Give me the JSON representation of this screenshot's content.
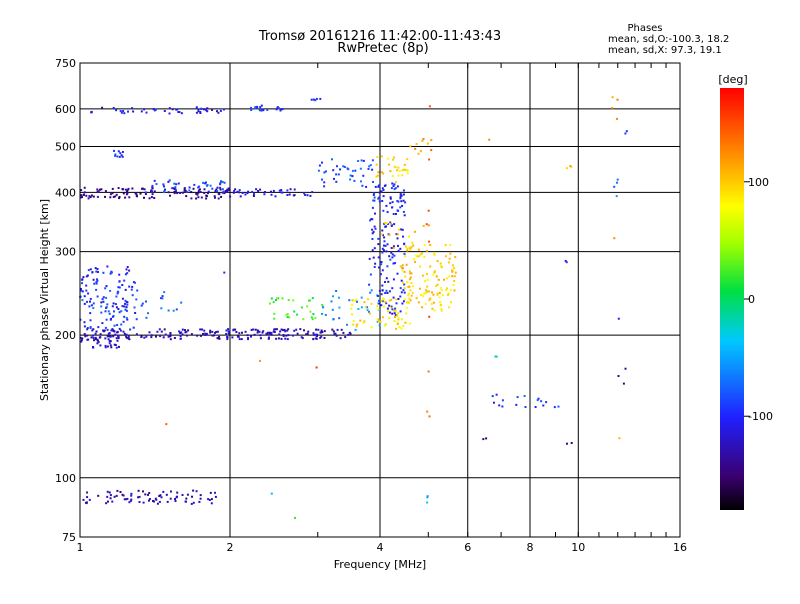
{
  "chart_data": {
    "type": "scatter",
    "title": "Tromsø 20161216 11:42:00-11:43:43",
    "subtitle": "RwPretec (8p)",
    "xlabel": "Frequency [MHz]",
    "ylabel": "Stationary phase Virtual Height [km]",
    "x_scale": "log",
    "y_scale": "log",
    "xlim": [
      1,
      16
    ],
    "ylim": [
      75,
      750
    ],
    "grid": true,
    "x_ticks": [
      1,
      2,
      4,
      6,
      8,
      10,
      16
    ],
    "x_tick_labels": [
      "1",
      "2",
      "4",
      "6",
      "8",
      "10",
      "16"
    ],
    "y_ticks": [
      75,
      100,
      200,
      300,
      400,
      500,
      600,
      750
    ],
    "y_tick_labels": [
      "75",
      "100",
      "200",
      "300",
      "400",
      "500",
      "600",
      "750"
    ],
    "phases_header": "Phases",
    "phases_lines": [
      "mean, sd,O:-100.3, 18.2",
      "mean, sd,X:  97.3, 19.1"
    ],
    "colorbar": {
      "label": "[deg]",
      "range": [
        -180,
        180
      ],
      "ticks": [
        100,
        0,
        -100
      ],
      "tick_labels": [
        "100",
        "0",
        "-100"
      ]
    },
    "point_groups": [
      {
        "f": [
          1.05,
          1.95
        ],
        "h": [
          585,
          605
        ],
        "phase": -110,
        "count": 45
      },
      {
        "f": [
          2.15,
          2.65
        ],
        "h": [
          595,
          610
        ],
        "phase": -95,
        "count": 20
      },
      {
        "f": [
          2.85,
          3.05
        ],
        "h": [
          622,
          635
        ],
        "phase": -100,
        "count": 5
      },
      {
        "f": [
          1.15,
          1.22
        ],
        "h": [
          475,
          490
        ],
        "phase": -100,
        "count": 10
      },
      {
        "f": [
          1.0,
          2.0
        ],
        "h": [
          388,
          410
        ],
        "phase": -140,
        "count": 120
      },
      {
        "f": [
          1.35,
          2.0
        ],
        "h": [
          400,
          425
        ],
        "phase": -90,
        "count": 40
      },
      {
        "f": [
          2.0,
          3.0
        ],
        "h": [
          392,
          408
        ],
        "phase": -110,
        "count": 40
      },
      {
        "f": [
          3.0,
          3.9
        ],
        "h": [
          410,
          470
        ],
        "phase": -85,
        "count": 40
      },
      {
        "f": [
          3.9,
          4.6
        ],
        "h": [
          420,
          480
        ],
        "phase": 95,
        "count": 30
      },
      {
        "f": [
          4.6,
          5.1
        ],
        "h": [
          480,
          520
        ],
        "phase": 120,
        "count": 10
      },
      {
        "f": [
          1.0,
          1.3
        ],
        "h": [
          205,
          280
        ],
        "phase": -100,
        "count": 110
      },
      {
        "f": [
          1.0,
          1.6
        ],
        "h": [
          215,
          250
        ],
        "phase": -80,
        "count": 40
      },
      {
        "f": [
          1.0,
          3.5
        ],
        "h": [
          196,
          206
        ],
        "phase": -125,
        "count": 220
      },
      {
        "f": [
          1.0,
          1.2
        ],
        "h": [
          188,
          196
        ],
        "phase": -120,
        "count": 25
      },
      {
        "f": [
          2.4,
          3.1
        ],
        "h": [
          215,
          240
        ],
        "phase": 20,
        "count": 30
      },
      {
        "f": [
          3.0,
          4.0
        ],
        "h": [
          205,
          250
        ],
        "phase": -60,
        "count": 30
      },
      {
        "f": [
          3.8,
          4.5
        ],
        "h": [
          220,
          420
        ],
        "phase": -100,
        "count": 170
      },
      {
        "f": [
          3.5,
          4.6
        ],
        "h": [
          205,
          240
        ],
        "phase": 90,
        "count": 60
      },
      {
        "f": [
          4.4,
          5.7
        ],
        "h": [
          225,
          310
        ],
        "phase": 95,
        "count": 130
      },
      {
        "f": [
          4.0,
          4.9
        ],
        "h": [
          300,
          350
        ],
        "phase": 100,
        "count": 15
      },
      {
        "f": [
          1.0,
          1.9
        ],
        "h": [
          88,
          94
        ],
        "phase": -130,
        "count": 80
      },
      {
        "f": [
          6.6,
          9.3
        ],
        "h": [
          140,
          150
        ],
        "phase": -90,
        "count": 18
      },
      {
        "f": [
          6.8,
          7.1
        ],
        "h": [
          180,
          182
        ],
        "phase": -30,
        "count": 2
      },
      {
        "f": [
          6.4,
          6.6
        ],
        "h": [
          120,
          124
        ],
        "phase": -140,
        "count": 2
      },
      {
        "f": [
          9.4,
          9.7
        ],
        "h": [
          118,
          122
        ],
        "phase": -130,
        "count": 2
      },
      {
        "f": [
          9.4,
          9.6
        ],
        "h": [
          285,
          290
        ],
        "phase": -110,
        "count": 2
      },
      {
        "f": [
          9.4,
          9.8
        ],
        "h": [
          430,
          455
        ],
        "phase": 100,
        "count": 3
      },
      {
        "f": [
          11.8,
          12.6
        ],
        "h": [
          155,
          170
        ],
        "phase": -130,
        "count": 3
      },
      {
        "f": [
          11.8,
          12.0
        ],
        "h": [
          410,
          440
        ],
        "phase": -80,
        "count": 3
      },
      {
        "f": [
          11.7,
          12.0
        ],
        "h": [
          570,
          640
        ],
        "phase": 120,
        "count": 4
      },
      {
        "f": [
          11.8,
          12.1
        ],
        "h": [
          320,
          325
        ],
        "phase": 140,
        "count": 1
      },
      {
        "f": [
          11.9,
          12.1
        ],
        "h": [
          120,
          124
        ],
        "phase": 100,
        "count": 1
      },
      {
        "f": [
          11.9,
          12.1
        ],
        "h": [
          215,
          219
        ],
        "phase": -90,
        "count": 1
      },
      {
        "f": [
          12.3,
          12.6
        ],
        "h": [
          525,
          540
        ],
        "phase": -110,
        "count": 2
      },
      {
        "f": [
          11.8,
          12.0
        ],
        "h": [
          390,
          400
        ],
        "phase": -40,
        "count": 1
      },
      {
        "f": [
          4.95,
          5.05
        ],
        "h": [
          130,
          660
        ],
        "phase": 140,
        "count": 10
      },
      {
        "f": [
          4.95,
          5.05
        ],
        "h": [
          80,
          98
        ],
        "phase": -40,
        "count": 3
      },
      {
        "f": [
          6.55,
          6.65
        ],
        "h": [
          510,
          520
        ],
        "phase": 110,
        "count": 1
      },
      {
        "f": [
          1.45,
          1.5
        ],
        "h": [
          127,
          130
        ],
        "phase": 160,
        "count": 1
      },
      {
        "f": [
          2.7,
          2.8
        ],
        "h": [
          81,
          83
        ],
        "phase": 30,
        "count": 1
      },
      {
        "f": [
          2.4,
          2.5
        ],
        "h": [
          92,
          94
        ],
        "phase": -50,
        "count": 1
      },
      {
        "f": [
          2.95,
          3.05
        ],
        "h": [
          168,
          172
        ],
        "phase": 150,
        "count": 1
      },
      {
        "f": [
          2.25,
          2.3
        ],
        "h": [
          174,
          178
        ],
        "phase": 100,
        "count": 1
      },
      {
        "f": [
          1.9,
          1.95
        ],
        "h": [
          268,
          274
        ],
        "phase": -110,
        "count": 1
      }
    ]
  }
}
